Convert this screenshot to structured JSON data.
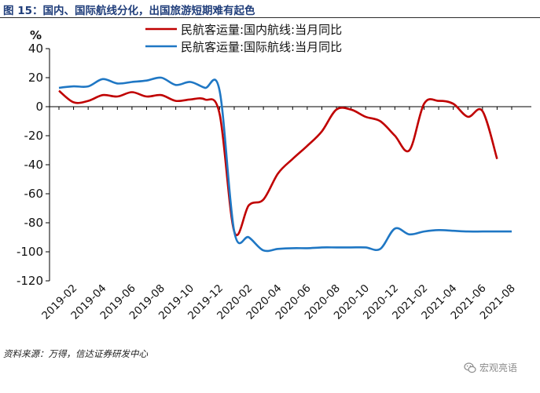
{
  "header": {
    "title": "图 15：国内、国际航线分化，出国旅游短期难有起色"
  },
  "footer": {
    "source": "资料来源：万得，信达证券研发中心",
    "watermark_text": "宏观亮语",
    "watermark_icon": "wechat-icon"
  },
  "chart_data": {
    "type": "line",
    "title": "",
    "xlabel": "",
    "ylabel": "%",
    "ylim": [
      -120,
      40
    ],
    "yticks": [
      40,
      20,
      0,
      -20,
      -40,
      -60,
      -80,
      -100,
      -120
    ],
    "grid": false,
    "legend_position": "top",
    "xticks": [
      "2019-02",
      "2019-04",
      "2019-06",
      "2019-08",
      "2019-10",
      "2019-12",
      "2020-02",
      "2020-04",
      "2020-06",
      "2020-08",
      "2020-10",
      "2020-12",
      "2021-02",
      "2021-04",
      "2021-06",
      "2021-08"
    ],
    "x": [
      "2019-01",
      "2019-02",
      "2019-03",
      "2019-04",
      "2019-05",
      "2019-06",
      "2019-07",
      "2019-08",
      "2019-09",
      "2019-10",
      "2019-11",
      "2019-12",
      "2020-01",
      "2020-02",
      "2020-03",
      "2020-04",
      "2020-05",
      "2020-06",
      "2020-07",
      "2020-08",
      "2020-09",
      "2020-10",
      "2020-11",
      "2020-12",
      "2021-01",
      "2021-02",
      "2021-03",
      "2021-04",
      "2021-05",
      "2021-06",
      "2021-07",
      "2021-08"
    ],
    "series": [
      {
        "name": "民航客运量:国内航线:当月同比",
        "color": "#c00000",
        "values": [
          11,
          3,
          4,
          8,
          7,
          10,
          7,
          8,
          4,
          5,
          5,
          -5,
          -86,
          -68,
          -64,
          -46,
          -36,
          -27,
          -17,
          -2,
          -2,
          -7,
          -10,
          -20,
          -30,
          2,
          4,
          2,
          -7,
          -3,
          -36,
          null
        ]
      },
      {
        "name": "民航客运量:国际航线:当月同比",
        "color": "#1f77c4",
        "values": [
          13,
          14,
          14,
          19,
          16,
          17,
          18,
          20,
          15,
          17,
          13,
          11,
          -86,
          -90,
          -99,
          -98,
          -97.5,
          -97.5,
          -97,
          -97,
          -97,
          -97,
          -98,
          -84,
          -88,
          -86,
          -85,
          -85.5,
          -86,
          -86,
          -86,
          -86
        ]
      }
    ]
  }
}
